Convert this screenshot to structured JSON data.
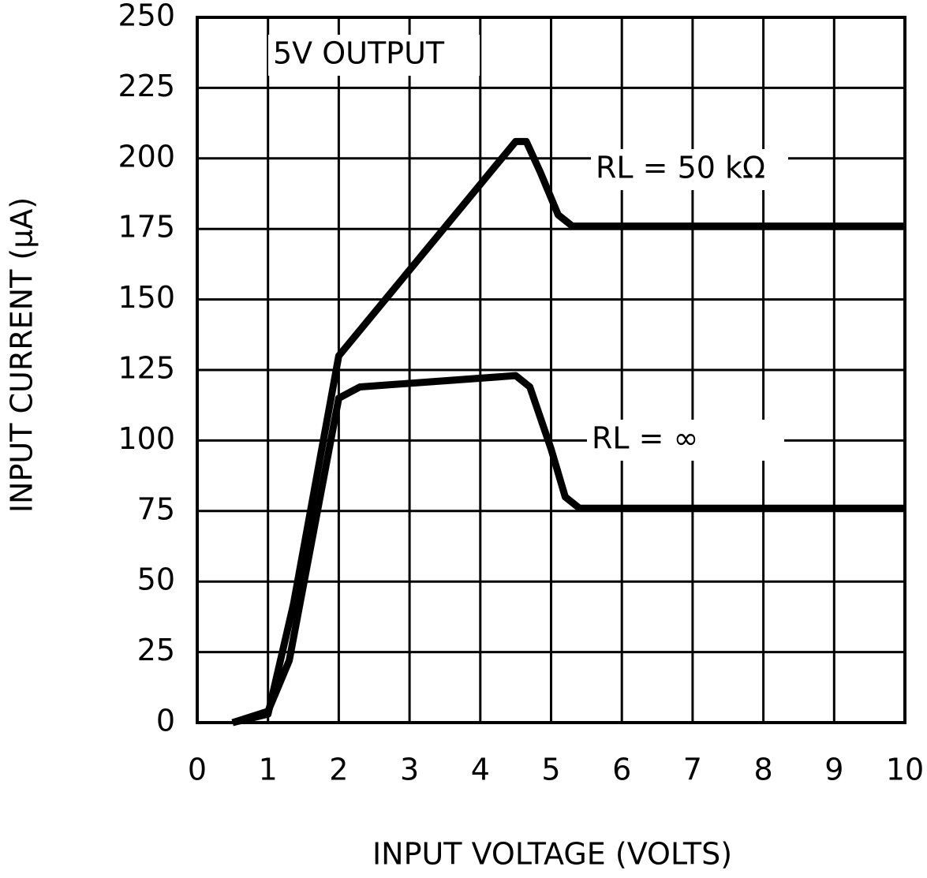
{
  "chart_data": {
    "type": "line",
    "annotation": "5V OUTPUT",
    "xlabel": "INPUT VOLTAGE (VOLTS)",
    "ylabel": "INPUT CURRENT (μA)",
    "xlim": [
      0,
      10
    ],
    "xticks": [
      0,
      1,
      2,
      3,
      4,
      5,
      6,
      7,
      8,
      9,
      10
    ],
    "ylim": [
      0,
      250
    ],
    "yticks": [
      0,
      25,
      50,
      75,
      100,
      125,
      150,
      175,
      200,
      225,
      250
    ],
    "grid": true,
    "series": [
      {
        "name": "RL = 50 kΩ",
        "color": "#000000",
        "x": [
          0.5,
          1,
          1.36,
          2,
          4.5,
          4.65,
          4.85,
          5.1,
          5.3,
          10
        ],
        "values": [
          0,
          3,
          42,
          130,
          206,
          206,
          195,
          180,
          176,
          176
        ]
      },
      {
        "name": "RL = ∞",
        "color": "#000000",
        "x": [
          0.5,
          1,
          1.3,
          2,
          2.3,
          4.5,
          4.7,
          5,
          5.2,
          5.4,
          10
        ],
        "values": [
          0,
          4,
          22,
          115,
          119,
          123,
          119,
          97,
          80,
          76,
          76
        ]
      }
    ]
  }
}
